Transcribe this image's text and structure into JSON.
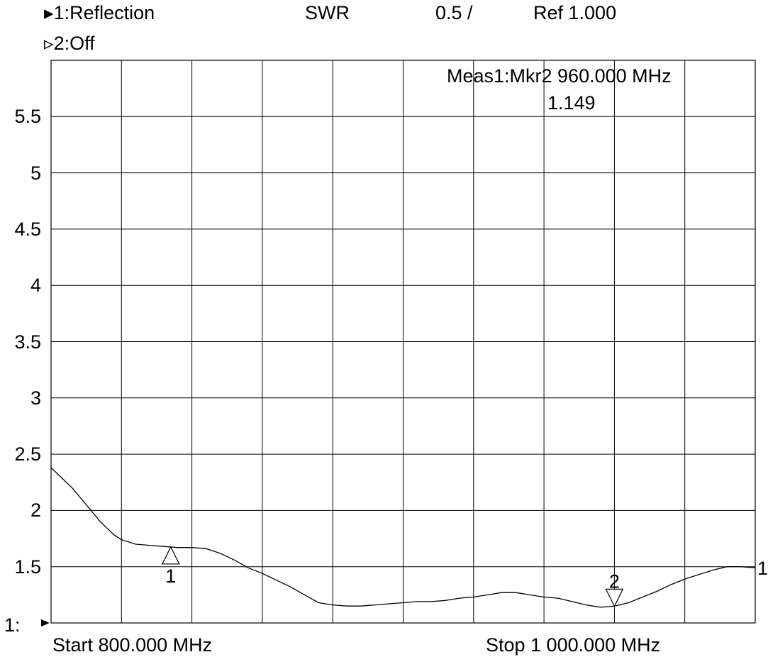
{
  "header": {
    "trace1_marker": "▸",
    "trace1_label": "1:Reflection",
    "format": "SWR",
    "scale": "0.5 /",
    "ref": "Ref  1.000",
    "trace2_marker": "▹",
    "trace2_label": "2:Off"
  },
  "marker_readout": {
    "line1": "Meas1:Mkr2  960.000 MHz",
    "line2": "1.149"
  },
  "footer": {
    "ref_indicator": "1:",
    "start": "Start 800.000 MHz",
    "stop": "Stop 1 000.000 MHz",
    "trace_end_label": "1"
  },
  "chart_data": {
    "type": "line",
    "title": "",
    "xlabel": "",
    "ylabel": "",
    "xlim": [
      800,
      1000
    ],
    "ylim": [
      1.0,
      6.0
    ],
    "x_unit": "MHz",
    "grid": true,
    "y_tick_labels": [
      {
        "value": 5.5,
        "label": "5.5"
      },
      {
        "value": 5.0,
        "label": "5"
      },
      {
        "value": 4.5,
        "label": "4.5"
      },
      {
        "value": 4.0,
        "label": "4"
      },
      {
        "value": 3.5,
        "label": "3.5"
      },
      {
        "value": 3.0,
        "label": "3"
      },
      {
        "value": 2.5,
        "label": "2.5"
      },
      {
        "value": 2.0,
        "label": "2"
      },
      {
        "value": 1.5,
        "label": "1.5"
      }
    ],
    "series": [
      {
        "x": [
          800,
          802,
          806,
          810,
          814,
          818,
          820,
          824,
          828,
          832,
          836,
          840,
          844,
          848,
          852,
          856,
          860,
          864,
          868,
          872,
          876,
          880,
          884,
          888,
          892,
          896,
          900,
          904,
          908,
          912,
          916,
          920,
          924,
          928,
          932,
          936,
          940,
          944,
          948,
          952,
          956,
          960,
          964,
          968,
          972,
          976,
          980,
          984,
          988,
          992,
          996,
          1000
        ],
        "values": [
          2.38,
          2.32,
          2.2,
          2.05,
          1.9,
          1.78,
          1.74,
          1.7,
          1.69,
          1.68,
          1.67,
          1.67,
          1.66,
          1.62,
          1.56,
          1.49,
          1.44,
          1.38,
          1.32,
          1.25,
          1.18,
          1.16,
          1.15,
          1.15,
          1.16,
          1.17,
          1.18,
          1.19,
          1.19,
          1.2,
          1.22,
          1.23,
          1.25,
          1.27,
          1.27,
          1.25,
          1.23,
          1.22,
          1.19,
          1.16,
          1.14,
          1.149,
          1.18,
          1.23,
          1.28,
          1.34,
          1.39,
          1.43,
          1.47,
          1.5,
          1.5,
          1.49
        ]
      }
    ],
    "markers": [
      {
        "label": "1",
        "x": 834,
        "direction": "up"
      },
      {
        "label": "2",
        "x": 960,
        "direction": "down"
      }
    ]
  }
}
